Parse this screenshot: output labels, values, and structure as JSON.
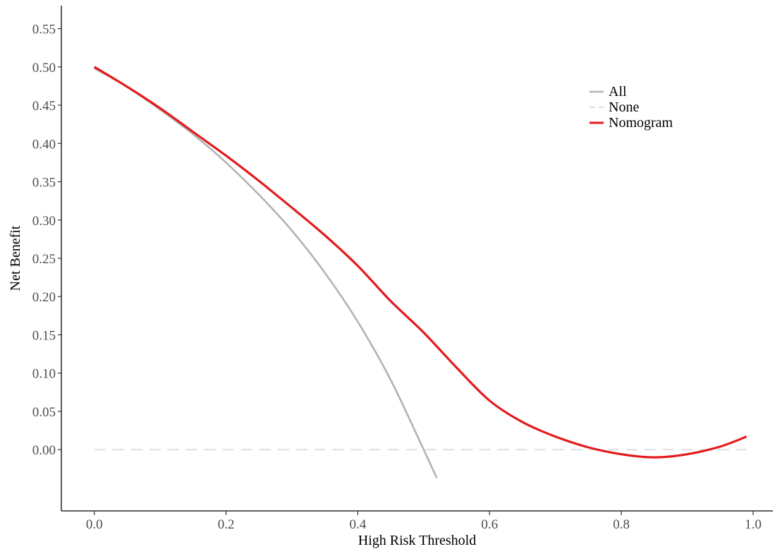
{
  "chart_data": {
    "type": "line",
    "xlabel": "High Risk Threshold",
    "ylabel": "Net Benefit",
    "xlim": [
      -0.05,
      1.03
    ],
    "ylim": [
      -0.08,
      0.58
    ],
    "x_ticks": [
      0.0,
      0.2,
      0.4,
      0.6,
      0.8,
      1.0
    ],
    "x_tick_labels": [
      "0.0",
      "0.2",
      "0.4",
      "0.6",
      "0.8",
      "1.0"
    ],
    "y_ticks": [
      0.0,
      0.05,
      0.1,
      0.15,
      0.2,
      0.25,
      0.3,
      0.35,
      0.4,
      0.45,
      0.5,
      0.55
    ],
    "y_tick_labels": [
      "0.00",
      "0.05",
      "0.10",
      "0.15",
      "0.20",
      "0.25",
      "0.30",
      "0.35",
      "0.40",
      "0.45",
      "0.50",
      "0.55"
    ],
    "grid": false,
    "legend_position": "top-right",
    "series": [
      {
        "name": "All",
        "color": "#b3b3b3",
        "style": "solid",
        "x": [
          0.0,
          0.05,
          0.1,
          0.15,
          0.2,
          0.25,
          0.3,
          0.35,
          0.4,
          0.45,
          0.5,
          0.52
        ],
        "y": [
          0.498,
          0.474,
          0.444,
          0.412,
          0.375,
          0.333,
          0.286,
          0.231,
          0.167,
          0.091,
          0.0,
          -0.037
        ]
      },
      {
        "name": "None",
        "color": "#e0e0e0",
        "style": "dashed",
        "x": [
          0.0,
          0.99
        ],
        "y": [
          0.0,
          0.0
        ]
      },
      {
        "name": "Nomogram",
        "color": "#e41a1c",
        "style": "solid",
        "x": [
          0.0,
          0.05,
          0.1,
          0.15,
          0.2,
          0.25,
          0.3,
          0.35,
          0.4,
          0.45,
          0.5,
          0.55,
          0.6,
          0.65,
          0.7,
          0.75,
          0.8,
          0.85,
          0.9,
          0.95,
          0.99
        ],
        "y": [
          0.5,
          0.474,
          0.446,
          0.415,
          0.384,
          0.351,
          0.316,
          0.28,
          0.24,
          0.194,
          0.153,
          0.107,
          0.064,
          0.036,
          0.017,
          0.003,
          -0.006,
          -0.01,
          -0.006,
          0.004,
          0.017
        ]
      }
    ]
  }
}
